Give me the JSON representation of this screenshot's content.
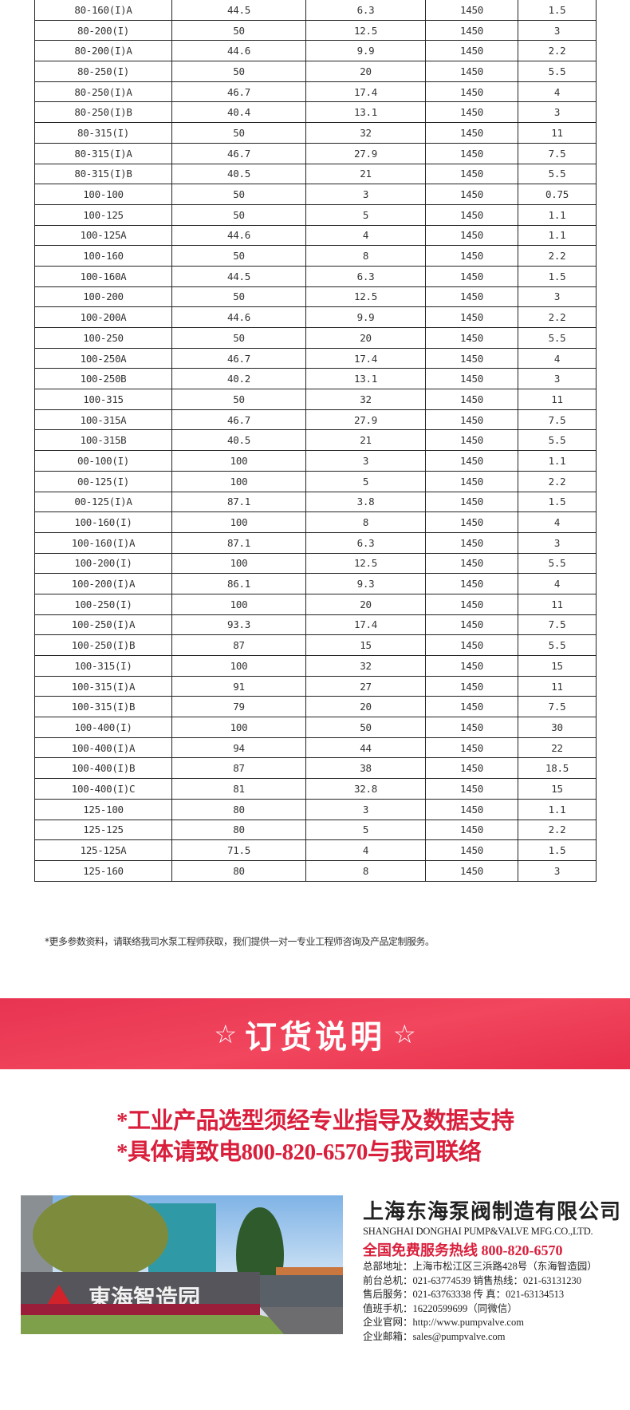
{
  "table": {
    "rows": [
      [
        "80-160(I)A",
        "44.5",
        "6.3",
        "1450",
        "1.5"
      ],
      [
        "80-200(I)",
        "50",
        "12.5",
        "1450",
        "3"
      ],
      [
        "80-200(I)A",
        "44.6",
        "9.9",
        "1450",
        "2.2"
      ],
      [
        "80-250(I)",
        "50",
        "20",
        "1450",
        "5.5"
      ],
      [
        "80-250(I)A",
        "46.7",
        "17.4",
        "1450",
        "4"
      ],
      [
        "80-250(I)B",
        "40.4",
        "13.1",
        "1450",
        "3"
      ],
      [
        "80-315(I)",
        "50",
        "32",
        "1450",
        "11"
      ],
      [
        "80-315(I)A",
        "46.7",
        "27.9",
        "1450",
        "7.5"
      ],
      [
        "80-315(I)B",
        "40.5",
        "21",
        "1450",
        "5.5"
      ],
      [
        "100-100",
        "50",
        "3",
        "1450",
        "0.75"
      ],
      [
        "100-125",
        "50",
        "5",
        "1450",
        "1.1"
      ],
      [
        "100-125A",
        "44.6",
        "4",
        "1450",
        "1.1"
      ],
      [
        "100-160",
        "50",
        "8",
        "1450",
        "2.2"
      ],
      [
        "100-160A",
        "44.5",
        "6.3",
        "1450",
        "1.5"
      ],
      [
        "100-200",
        "50",
        "12.5",
        "1450",
        "3"
      ],
      [
        "100-200A",
        "44.6",
        "9.9",
        "1450",
        "2.2"
      ],
      [
        "100-250",
        "50",
        "20",
        "1450",
        "5.5"
      ],
      [
        "100-250A",
        "46.7",
        "17.4",
        "1450",
        "4"
      ],
      [
        "100-250B",
        "40.2",
        "13.1",
        "1450",
        "3"
      ],
      [
        "100-315",
        "50",
        "32",
        "1450",
        "11"
      ],
      [
        "100-315A",
        "46.7",
        "27.9",
        "1450",
        "7.5"
      ],
      [
        "100-315B",
        "40.5",
        "21",
        "1450",
        "5.5"
      ],
      [
        "00-100(I)",
        "100",
        "3",
        "1450",
        "1.1"
      ],
      [
        "00-125(I)",
        "100",
        "5",
        "1450",
        "2.2"
      ],
      [
        "00-125(I)A",
        "87.1",
        "3.8",
        "1450",
        "1.5"
      ],
      [
        "100-160(I)",
        "100",
        "8",
        "1450",
        "4"
      ],
      [
        "100-160(I)A",
        "87.1",
        "6.3",
        "1450",
        "3"
      ],
      [
        "100-200(I)",
        "100",
        "12.5",
        "1450",
        "5.5"
      ],
      [
        "100-200(I)A",
        "86.1",
        "9.3",
        "1450",
        "4"
      ],
      [
        "100-250(I)",
        "100",
        "20",
        "1450",
        "11"
      ],
      [
        "100-250(I)A",
        "93.3",
        "17.4",
        "1450",
        "7.5"
      ],
      [
        "100-250(I)B",
        "87",
        "15",
        "1450",
        "5.5"
      ],
      [
        "100-315(I)",
        "100",
        "32",
        "1450",
        "15"
      ],
      [
        "100-315(I)A",
        "91",
        "27",
        "1450",
        "11"
      ],
      [
        "100-315(I)B",
        "79",
        "20",
        "1450",
        "7.5"
      ],
      [
        "100-400(I)",
        "100",
        "50",
        "1450",
        "30"
      ],
      [
        "100-400(I)A",
        "94",
        "44",
        "1450",
        "22"
      ],
      [
        "100-400(I)B",
        "87",
        "38",
        "1450",
        "18.5"
      ],
      [
        "100-400(I)C",
        "81",
        "32.8",
        "1450",
        "15"
      ],
      [
        "125-100",
        "80",
        "3",
        "1450",
        "1.1"
      ],
      [
        "125-125",
        "80",
        "5",
        "1450",
        "2.2"
      ],
      [
        "125-125A",
        "71.5",
        "4",
        "1450",
        "1.5"
      ],
      [
        "125-160",
        "80",
        "8",
        "1450",
        "3"
      ]
    ]
  },
  "footnote": "*更多参数资料，请联络我司水泵工程师获取，我们提供一对一专业工程师咨询及产品定制服务。",
  "banner": {
    "star": "☆",
    "title": "订货说明"
  },
  "notice": {
    "line1": "*工业产品选型须经专业指导及数据支持",
    "line2": "*具体请致电800-820-6570与我司联络"
  },
  "photo": {
    "sign_text": "東海智造园"
  },
  "company": {
    "name_cn": "上海东海泵阀制造有限公司",
    "name_en": "SHANGHAI DONGHAI PUMP&VALVE MFG.CO.,LTD.",
    "hotline": "全国免费服务热线  800-820-6570",
    "lines": [
      "总部地址：上海市松江区三浜路428号（东海智造园）",
      "前台总机：021-63774539   销售热线：021-63131230",
      "售后服务：021-63763338   传      真：021-63134513",
      "值班手机：16220599699（同微信）",
      "企业官网：http://www.pumpvalve.com",
      "企业邮箱：sales@pumpvalve.com"
    ]
  },
  "colors": {
    "accent_red": "#d91f3c",
    "banner_red": "#ee3e57"
  }
}
